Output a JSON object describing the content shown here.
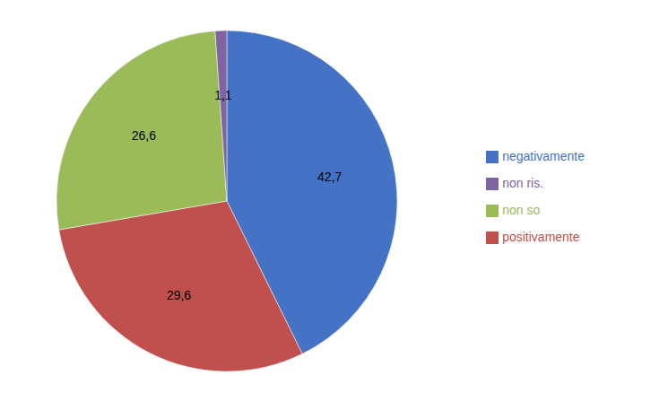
{
  "chart_data": {
    "type": "pie",
    "categories": [
      "negativamente",
      "positivamente",
      "non so",
      "non ris."
    ],
    "values": [
      42.7,
      29.6,
      26.6,
      1.1
    ],
    "value_labels": [
      "42,7",
      "29,6",
      "26,6",
      "1,1"
    ],
    "colors": [
      "#4472C4",
      "#C0504D",
      "#9BBB59",
      "#8064A2"
    ],
    "data_labels": true,
    "legend": "right"
  }
}
